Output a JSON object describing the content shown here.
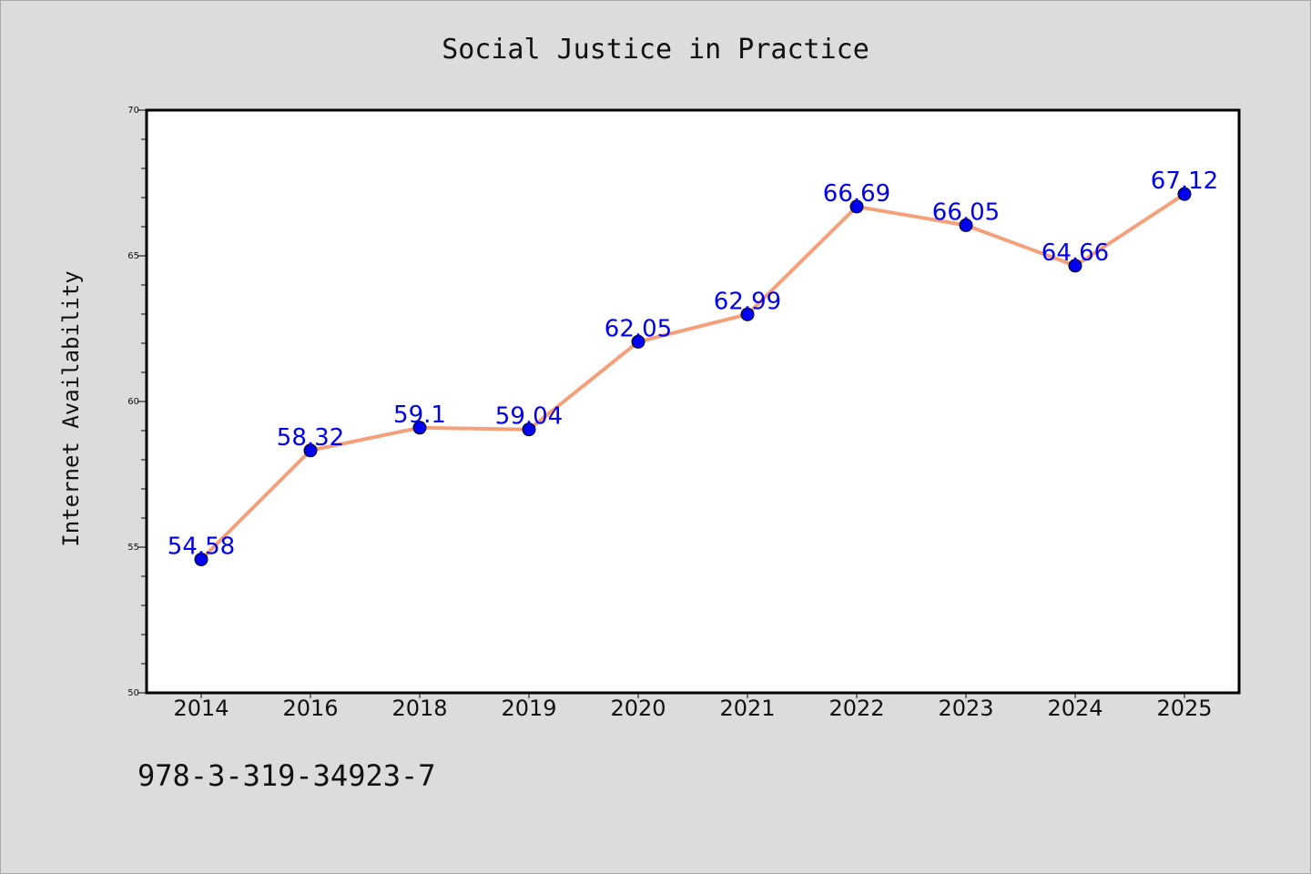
{
  "chart_data": {
    "type": "line",
    "title": "Social Justice in Practice",
    "xlabel": "",
    "ylabel": "Internet Availability",
    "categories": [
      "2014",
      "2016",
      "2018",
      "2019",
      "2020",
      "2021",
      "2022",
      "2023",
      "2024",
      "2025"
    ],
    "series": [
      {
        "values": [
          54.58,
          58.32,
          59.1,
          59.04,
          62.05,
          62.99,
          66.69,
          66.05,
          64.66,
          67.12
        ],
        "line_color": "#f4a07a",
        "marker_color": "#0000ee"
      }
    ],
    "data_labels": [
      "54.58",
      "58.32",
      "59.1",
      "59.04",
      "62.05",
      "62.99",
      "66.69",
      "66.05",
      "64.66",
      "67.12"
    ],
    "data_label_color": "#0000ee",
    "ylim": [
      50,
      70
    ],
    "yticks": [
      50,
      55,
      60,
      65,
      70
    ],
    "y_minor_step": 1,
    "grid": false,
    "legend": false,
    "background_color": "#dcdcdc",
    "plot_background_color": "#ffffff"
  },
  "footer": {
    "isbn": "978-3-319-34923-7"
  }
}
